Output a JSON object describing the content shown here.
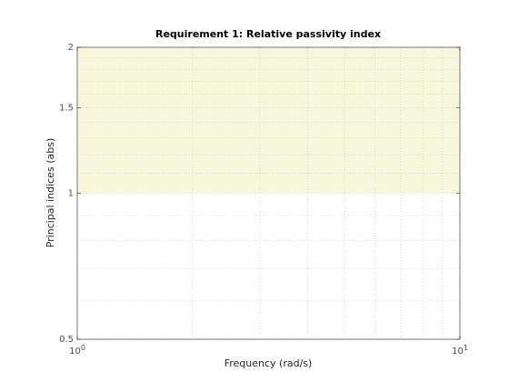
{
  "chart_data": {
    "type": "region",
    "title": "Requirement 1: Relative passivity index",
    "xlabel": "Frequency (rad/s)",
    "ylabel": "Principal indices (abs)",
    "xscale": "log",
    "yscale": "log",
    "xlim": [
      1,
      10
    ],
    "ylim": [
      0.5,
      2
    ],
    "xticks": [
      {
        "value": 1,
        "label": "10",
        "exponent": "0"
      },
      {
        "value": 10,
        "label": "10",
        "exponent": "1"
      }
    ],
    "yticks": [
      0.5,
      1,
      1.5,
      2
    ],
    "minor_xticks": [
      2,
      3,
      4,
      5,
      6,
      7,
      8,
      9
    ],
    "minor_yticks": [
      0.6,
      0.7,
      0.8,
      0.9,
      1.1,
      1.2,
      1.3,
      1.4,
      1.6,
      1.7,
      1.8,
      1.9
    ],
    "grid": true,
    "minor_grid": true,
    "regions": [
      {
        "y": [
          1,
          2
        ],
        "color": "#f7f7dc"
      }
    ]
  }
}
